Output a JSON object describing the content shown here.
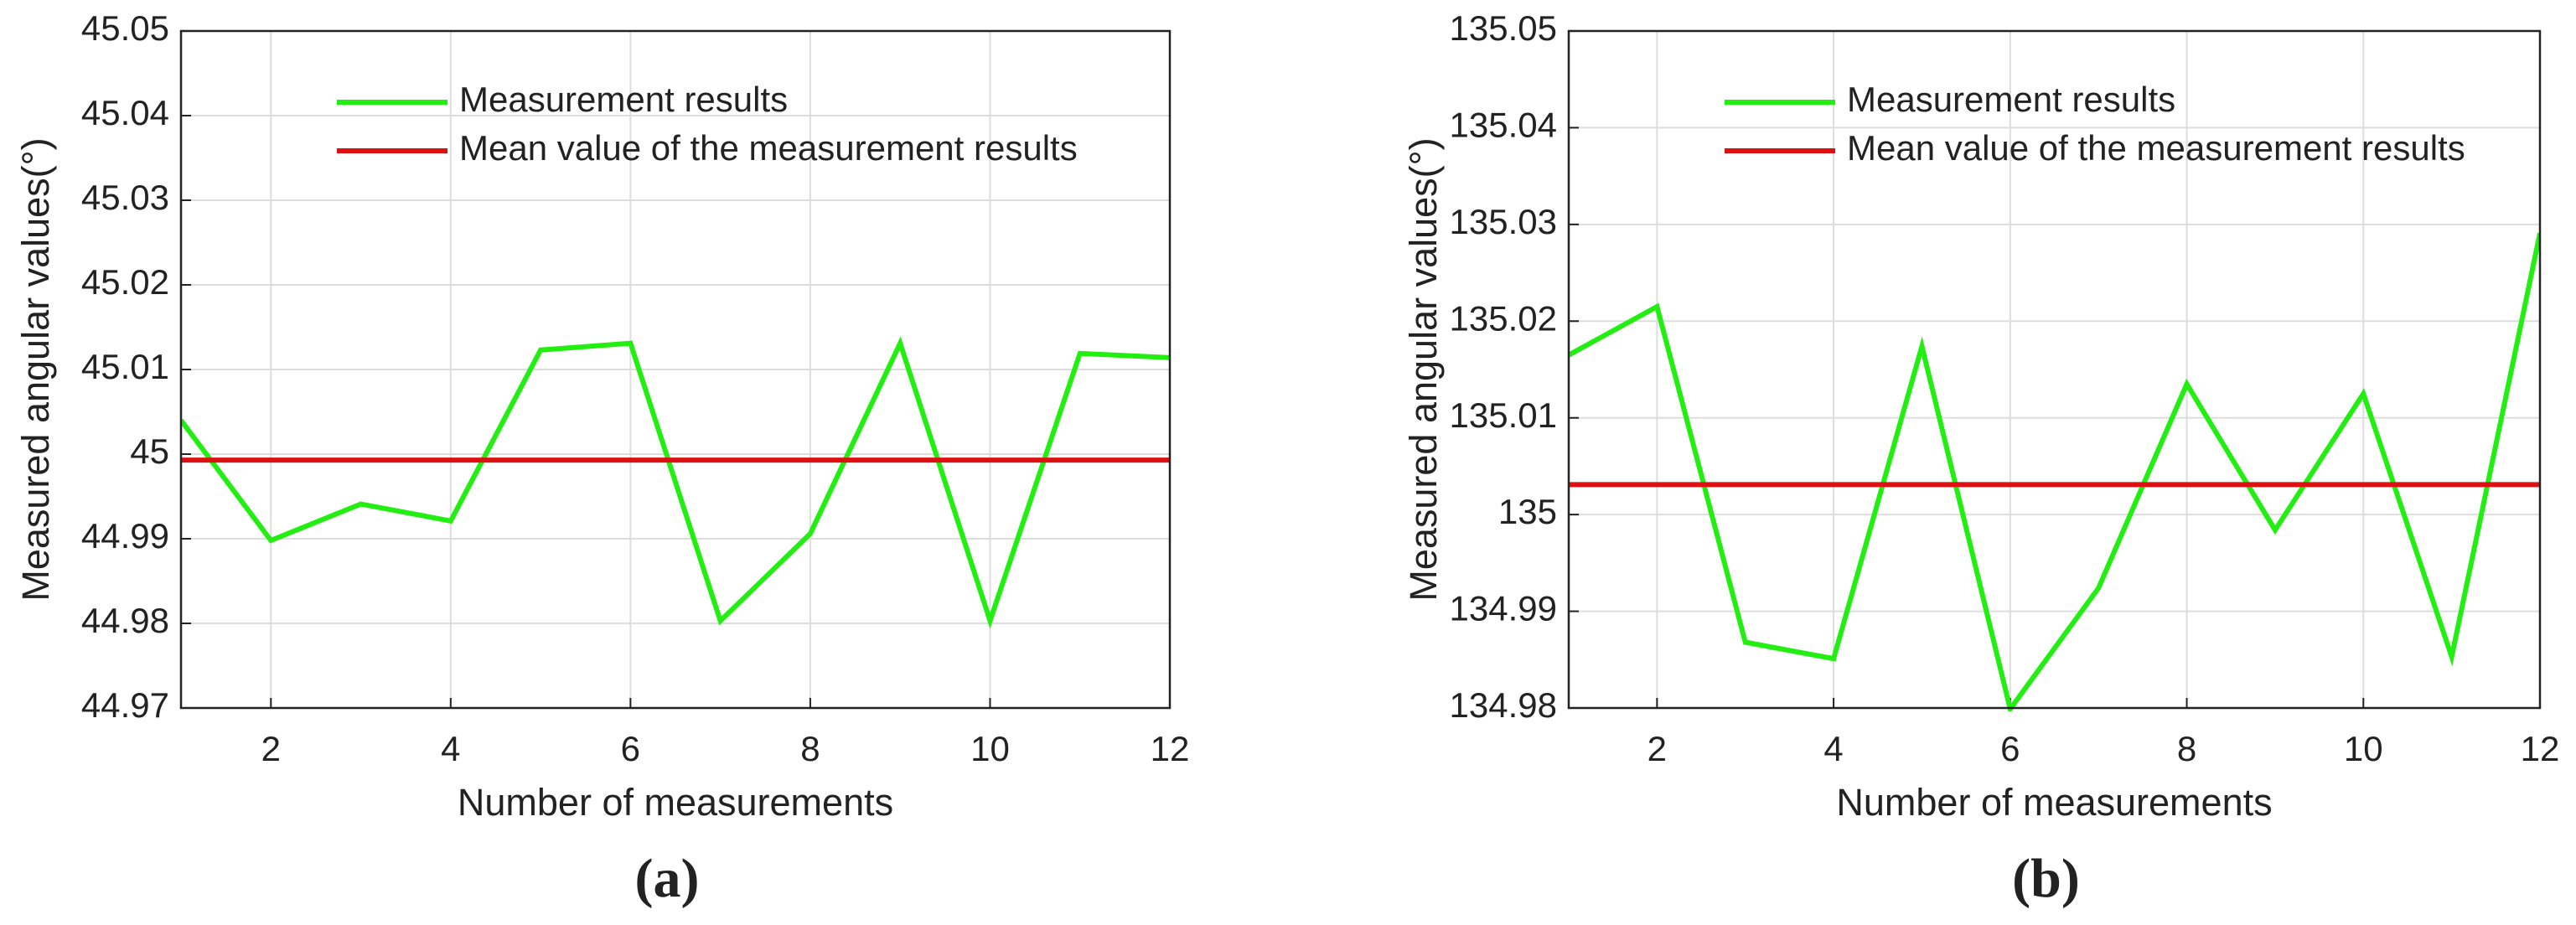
{
  "chart_data": [
    {
      "type": "line",
      "label": "(a)",
      "x_label": "Number of measurements",
      "y_label": "Measured angular values(°)",
      "x": [
        1,
        2,
        3,
        4,
        5,
        6,
        7,
        8,
        9,
        10,
        11,
        12
      ],
      "series": [
        {
          "name": "Measurement results",
          "color": "#22ee11",
          "values": [
            45.004,
            44.9898,
            44.9941,
            44.9921,
            45.0123,
            45.0131,
            44.9803,
            44.9906,
            45.0131,
            44.9803,
            45.0119,
            45.0114
          ]
        },
        {
          "name": "Mean value of the measurement results",
          "color": "#dd1111",
          "values": [
            44.9993,
            44.9993,
            44.9993,
            44.9993,
            44.9993,
            44.9993,
            44.9993,
            44.9993,
            44.9993,
            44.9993,
            44.9993,
            44.9993
          ]
        }
      ],
      "xlim": [
        1,
        12
      ],
      "xticks": [
        2,
        4,
        6,
        8,
        10,
        12
      ],
      "ylim": [
        44.97,
        45.05
      ],
      "yticks": [
        44.97,
        44.98,
        44.99,
        45,
        45.01,
        45.02,
        45.03,
        45.04,
        45.05
      ],
      "grid": true
    },
    {
      "type": "line",
      "label": "(b)",
      "x_label": "Number of measurements",
      "y_label": "Measured angular values(°)",
      "x": [
        1,
        2,
        3,
        4,
        5,
        6,
        7,
        8,
        9,
        10,
        11,
        12
      ],
      "series": [
        {
          "name": "Measurement results",
          "color": "#22ee11",
          "values": [
            135.0165,
            135.0215,
            134.9868,
            134.9851,
            135.0174,
            134.9799,
            134.9924,
            135.0135,
            134.9984,
            135.0125,
            134.9853,
            135.0291
          ]
        },
        {
          "name": "Mean value of the measurement results",
          "color": "#dd1111",
          "values": [
            135.0031,
            135.0031,
            135.0031,
            135.0031,
            135.0031,
            135.0031,
            135.0031,
            135.0031,
            135.0031,
            135.0031,
            135.0031,
            135.0031
          ]
        }
      ],
      "xlim": [
        1,
        12
      ],
      "xticks": [
        2,
        4,
        6,
        8,
        10,
        12
      ],
      "ylim": [
        134.98,
        135.05
      ],
      "yticks": [
        134.98,
        134.99,
        135,
        135.01,
        135.02,
        135.03,
        135.04,
        135.05
      ],
      "grid": true
    }
  ]
}
